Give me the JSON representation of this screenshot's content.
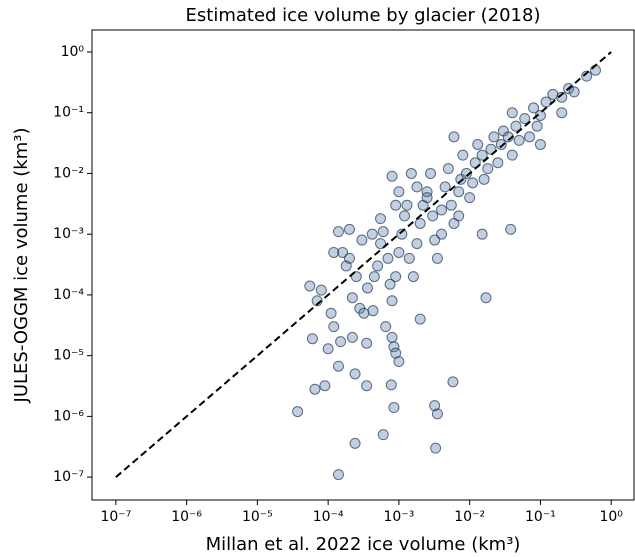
{
  "chart_data": {
    "type": "scatter",
    "title": "Estimated ice volume by glacier (2018)",
    "xlabel": "Millan et al. 2022 ice volume (km³)",
    "ylabel": "JULES-OGGM ice volume (km³)",
    "xscale": "log",
    "yscale": "log",
    "xlim": [
      4.6e-08,
      2.1
    ],
    "ylim": [
      4.2e-08,
      2.3
    ],
    "xticks": [
      {
        "value": 1e-07,
        "label": "10⁻⁷"
      },
      {
        "value": 1e-06,
        "label": "10⁻⁶"
      },
      {
        "value": 1e-05,
        "label": "10⁻⁵"
      },
      {
        "value": 0.0001,
        "label": "10⁻⁴"
      },
      {
        "value": 0.001,
        "label": "10⁻³"
      },
      {
        "value": 0.01,
        "label": "10⁻²"
      },
      {
        "value": 0.1,
        "label": "10⁻¹"
      },
      {
        "value": 1,
        "label": "10⁰"
      }
    ],
    "yticks": [
      {
        "value": 1e-07,
        "label": "10⁻⁷"
      },
      {
        "value": 1e-06,
        "label": "10⁻⁶"
      },
      {
        "value": 1e-05,
        "label": "10⁻⁵"
      },
      {
        "value": 0.0001,
        "label": "10⁻⁴"
      },
      {
        "value": 0.001,
        "label": "10⁻³"
      },
      {
        "value": 0.01,
        "label": "10⁻²"
      },
      {
        "value": 0.1,
        "label": "10⁻¹"
      },
      {
        "value": 1,
        "label": "10⁰"
      }
    ],
    "color": "#4d76a8",
    "edgecolor": "#1f3550",
    "x": [
      3.7e-05,
      6.5e-05,
      9e-05,
      0.00014,
      0.00024,
      0.0006,
      0.0033,
      0.0032,
      0.0035,
      0.00085,
      0.00078,
      0.0058,
      0.00024,
      0.00035,
      0.00014,
      6e-05,
      0.0001,
      5.5e-05,
      7e-05,
      0.00011,
      0.00012,
      0.00022,
      0.00035,
      0.00065,
      0.0008,
      0.00085,
      0.001,
      0.002,
      0.017,
      0.038,
      0.0002,
      0.00014,
      0.00016,
      0.00018,
      0.00025,
      0.00022,
      0.00028,
      0.00032,
      0.00043,
      0.00036,
      0.00045,
      0.0005,
      0.00055,
      0.0006,
      0.00055,
      0.00042,
      0.0007,
      0.00075,
      0.0008,
      0.0009,
      0.001,
      0.0011,
      0.0012,
      0.0013,
      0.001,
      0.0008,
      0.0015,
      0.0014,
      0.0016,
      0.0018,
      0.002,
      0.0022,
      0.0025,
      0.0028,
      0.003,
      0.0032,
      0.0035,
      0.004,
      0.0045,
      0.005,
      0.0055,
      0.006,
      0.007,
      0.0075,
      0.008,
      0.009,
      0.01,
      0.011,
      0.012,
      0.013,
      0.015,
      0.016,
      0.018,
      0.02,
      0.022,
      0.025,
      0.028,
      0.03,
      0.035,
      0.04,
      0.045,
      0.05,
      0.06,
      0.07,
      0.08,
      0.09,
      0.1,
      0.12,
      0.15,
      0.2,
      0.25,
      0.3,
      0.45,
      0.6,
      0.1,
      0.2,
      0.04,
      0.006,
      0.0025,
      0.0002,
      0.00012,
      0.0003,
      8e-05,
      0.0018,
      0.0009,
      0.004,
      0.007,
      0.015,
      0.00015,
      0.0009
    ],
    "values": [
      1.2e-06,
      2.8e-06,
      3.2e-06,
      1.1e-07,
      3.6e-07,
      5e-07,
      3e-07,
      1.5e-06,
      1.1e-06,
      1.4e-06,
      3.3e-06,
      3.7e-06,
      5e-06,
      3.2e-06,
      6.7e-06,
      1.9e-05,
      1.3e-05,
      0.00014,
      8e-05,
      5e-05,
      3e-05,
      2e-05,
      1.6e-05,
      3e-05,
      2e-05,
      1.4e-05,
      8e-06,
      4e-05,
      9e-05,
      0.0012,
      0.0012,
      0.0011,
      0.0005,
      0.0003,
      0.0002,
      9e-05,
      6e-05,
      5e-05,
      5.5e-05,
      0.00013,
      0.0002,
      0.0003,
      0.0007,
      0.0011,
      0.0018,
      0.001,
      0.0004,
      0.00015,
      8e-05,
      0.0002,
      0.0005,
      0.001,
      0.002,
      0.003,
      0.005,
      0.009,
      0.01,
      0.0004,
      0.0002,
      0.0007,
      0.0015,
      0.003,
      0.005,
      0.01,
      0.002,
      0.0008,
      0.0004,
      0.0025,
      0.006,
      0.012,
      0.003,
      0.0015,
      0.005,
      0.008,
      0.02,
      0.01,
      0.004,
      0.007,
      0.015,
      0.03,
      0.02,
      0.008,
      0.012,
      0.025,
      0.04,
      0.015,
      0.03,
      0.05,
      0.04,
      0.02,
      0.06,
      0.035,
      0.08,
      0.04,
      0.12,
      0.06,
      0.09,
      0.15,
      0.2,
      0.18,
      0.25,
      0.22,
      0.4,
      0.5,
      0.03,
      0.1,
      0.1,
      0.04,
      0.004,
      0.0004,
      0.0005,
      0.0008,
      0.00012,
      0.006,
      0.003,
      0.001,
      0.002,
      0.001,
      1.7e-05,
      1.1e-05
    ],
    "reference_line": {
      "x": [
        1e-07,
        1
      ],
      "values": [
        1e-07,
        1
      ],
      "color": "#000000"
    }
  }
}
